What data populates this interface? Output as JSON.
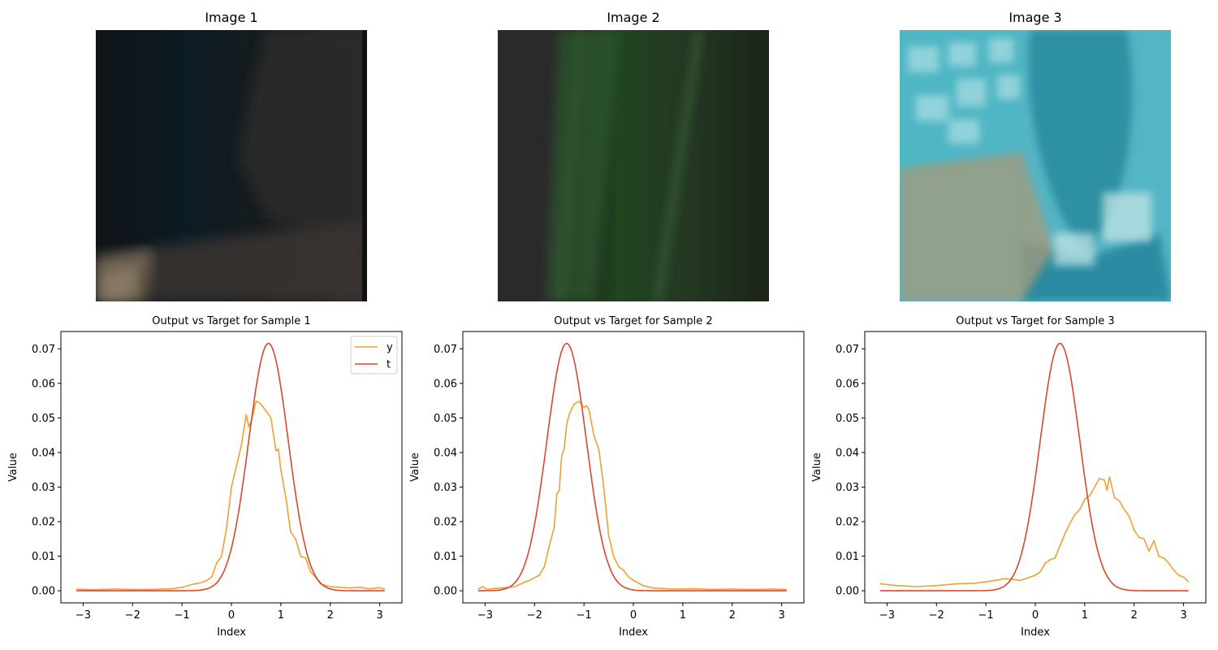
{
  "images": [
    {
      "title": "Image 1",
      "palette": [
        "#101418",
        "#0c1c24",
        "#161c1e",
        "#2c2a2a",
        "#3a3633",
        "#6d6250",
        "#8f7f69"
      ]
    },
    {
      "title": "Image 2",
      "palette": [
        "#2a2a2b",
        "#1e2a1e",
        "#204420",
        "#2f5a2d",
        "#243823",
        "#1b2418",
        "#3f6a3c"
      ]
    },
    {
      "title": "Image 3",
      "palette": [
        "#4fb6c4",
        "#2e90a3",
        "#2b8ba2",
        "#9ed8de",
        "#c9e9e8",
        "#a79a7a",
        "#58b5c3"
      ]
    }
  ],
  "chart_data": [
    {
      "type": "line",
      "title": "Output vs Target for Sample 1",
      "xlabel": "Index",
      "ylabel": "Value",
      "xlim": [
        -3.45,
        3.45
      ],
      "ylim": [
        -0.0035,
        0.075
      ],
      "xticks": [
        -3,
        -2,
        -1,
        0,
        1,
        2,
        3
      ],
      "yticks": [
        0.0,
        0.01,
        0.02,
        0.03,
        0.04,
        0.05,
        0.06,
        0.07
      ],
      "legend": {
        "position": "top-right",
        "entries": [
          "y",
          "t"
        ]
      },
      "series": [
        {
          "name": "y",
          "color": "#f0a030",
          "x": [
            -3.14,
            -2.8,
            -2.4,
            -2.0,
            -1.6,
            -1.2,
            -1.0,
            -0.8,
            -0.6,
            -0.5,
            -0.4,
            -0.3,
            -0.2,
            -0.1,
            0.0,
            0.1,
            0.2,
            0.3,
            0.35,
            0.4,
            0.5,
            0.55,
            0.6,
            0.7,
            0.8,
            0.9,
            0.95,
            1.0,
            1.1,
            1.2,
            1.3,
            1.4,
            1.5,
            1.6,
            1.7,
            1.8,
            2.0,
            2.2,
            2.4,
            2.6,
            2.8,
            3.0,
            3.1
          ],
          "y": [
            0.0005,
            0.0003,
            0.0005,
            0.0004,
            0.0004,
            0.0006,
            0.001,
            0.0018,
            0.0024,
            0.003,
            0.004,
            0.008,
            0.01,
            0.018,
            0.03,
            0.036,
            0.042,
            0.051,
            0.0475,
            0.049,
            0.0548,
            0.0545,
            0.054,
            0.052,
            0.05,
            0.0405,
            0.041,
            0.035,
            0.027,
            0.017,
            0.015,
            0.01,
            0.0095,
            0.0055,
            0.004,
            0.002,
            0.0012,
            0.001,
            0.0008,
            0.001,
            0.0006,
            0.0009,
            0.0005
          ]
        },
        {
          "name": "t",
          "color": "#d9482b",
          "gaussian": {
            "mu": 0.75,
            "sigma": 0.4,
            "peak": 0.0716
          }
        }
      ]
    },
    {
      "type": "line",
      "title": "Output vs Target for Sample 2",
      "xlabel": "Index",
      "ylabel": "Value",
      "xlim": [
        -3.45,
        3.45
      ],
      "ylim": [
        -0.0035,
        0.075
      ],
      "xticks": [
        -3,
        -2,
        -1,
        0,
        1,
        2,
        3
      ],
      "yticks": [
        0.0,
        0.01,
        0.02,
        0.03,
        0.04,
        0.05,
        0.06,
        0.07
      ],
      "series": [
        {
          "name": "y",
          "color": "#f0a030",
          "x": [
            -3.14,
            -3.05,
            -2.95,
            -2.8,
            -2.6,
            -2.4,
            -2.2,
            -2.1,
            -2.0,
            -1.9,
            -1.8,
            -1.7,
            -1.6,
            -1.55,
            -1.5,
            -1.45,
            -1.4,
            -1.35,
            -1.3,
            -1.2,
            -1.1,
            -1.0,
            -0.95,
            -0.9,
            -0.8,
            -0.7,
            -0.6,
            -0.5,
            -0.4,
            -0.3,
            -0.2,
            -0.1,
            0.0,
            0.2,
            0.4,
            0.8,
            1.2,
            1.6,
            2.0,
            2.4,
            2.8,
            3.1
          ],
          "y": [
            0.0005,
            0.0012,
            0.0004,
            0.0007,
            0.0009,
            0.0012,
            0.0025,
            0.003,
            0.0038,
            0.0045,
            0.007,
            0.013,
            0.0185,
            0.028,
            0.029,
            0.039,
            0.041,
            0.048,
            0.051,
            0.054,
            0.0548,
            0.053,
            0.0535,
            0.0525,
            0.045,
            0.041,
            0.03,
            0.016,
            0.01,
            0.007,
            0.006,
            0.004,
            0.003,
            0.0015,
            0.0008,
            0.0005,
            0.0006,
            0.0004,
            0.0005,
            0.0004,
            0.0005,
            0.0004
          ]
        },
        {
          "name": "t",
          "color": "#d9482b",
          "gaussian": {
            "mu": -1.35,
            "sigma": 0.4,
            "peak": 0.0716
          }
        }
      ]
    },
    {
      "type": "line",
      "title": "Output vs Target for Sample 3",
      "xlabel": "Index",
      "ylabel": "Value",
      "xlim": [
        -3.45,
        3.45
      ],
      "ylim": [
        -0.0035,
        0.075
      ],
      "xticks": [
        -3,
        -2,
        -1,
        0,
        1,
        2,
        3
      ],
      "yticks": [
        0.0,
        0.01,
        0.02,
        0.03,
        0.04,
        0.05,
        0.06,
        0.07
      ],
      "series": [
        {
          "name": "y",
          "color": "#f0a030",
          "x": [
            -3.14,
            -2.8,
            -2.4,
            -2.0,
            -1.6,
            -1.2,
            -0.9,
            -0.6,
            -0.3,
            -0.1,
            0.0,
            0.1,
            0.2,
            0.3,
            0.4,
            0.5,
            0.6,
            0.7,
            0.8,
            0.9,
            1.0,
            1.1,
            1.2,
            1.3,
            1.4,
            1.45,
            1.5,
            1.6,
            1.7,
            1.8,
            1.9,
            2.0,
            2.1,
            2.2,
            2.3,
            2.4,
            2.5,
            2.6,
            2.7,
            2.8,
            2.9,
            3.0,
            3.1
          ],
          "y": [
            0.002,
            0.0015,
            0.0012,
            0.0015,
            0.002,
            0.0022,
            0.0028,
            0.0035,
            0.003,
            0.004,
            0.0045,
            0.0055,
            0.008,
            0.009,
            0.0095,
            0.013,
            0.0165,
            0.0195,
            0.022,
            0.0235,
            0.0265,
            0.0275,
            0.03,
            0.0325,
            0.032,
            0.029,
            0.033,
            0.027,
            0.026,
            0.0235,
            0.0215,
            0.0175,
            0.0155,
            0.015,
            0.0115,
            0.0145,
            0.01,
            0.0095,
            0.008,
            0.006,
            0.0045,
            0.004,
            0.0025
          ]
        },
        {
          "name": "t",
          "color": "#d9482b",
          "gaussian": {
            "mu": 0.5,
            "sigma": 0.4,
            "peak": 0.0716
          }
        }
      ]
    }
  ]
}
